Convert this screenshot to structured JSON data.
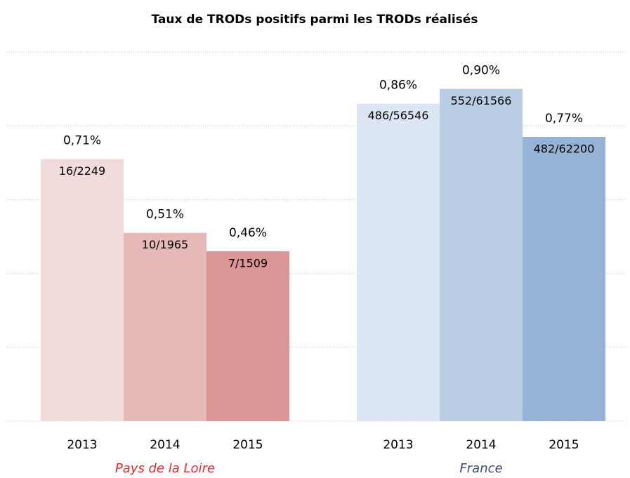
{
  "chart_data": {
    "type": "grouped-bar",
    "title": "Taux de TRODs positifs parmi les TRODs réalisés",
    "ylim": [
      0,
      1.0
    ],
    "yticks": [
      0,
      0.2,
      0.4,
      0.6,
      0.8,
      1.0
    ],
    "grid": true,
    "series": [
      {
        "name": "Pays de la Loire",
        "color": "#e8262b",
        "categories": [
          "2013",
          "2014",
          "2015"
        ],
        "values": [
          0.71,
          0.51,
          0.46
        ],
        "value_labels": [
          "0,71%",
          "0,51%",
          "0,46%"
        ],
        "inner_labels": [
          "16/2249",
          "10/1965",
          "7/1509"
        ],
        "bar_colors": [
          "#f2dcdb",
          "#e6b9b8",
          "#d99694"
        ]
      },
      {
        "name": "France",
        "color": "#3b4a6b",
        "categories": [
          "2013",
          "2014",
          "2015"
        ],
        "values": [
          0.86,
          0.9,
          0.77
        ],
        "value_labels": [
          "0,86%",
          "0,90%",
          "0,77%"
        ],
        "inner_labels": [
          "486/56546",
          "552/61566",
          "482/62200"
        ],
        "bar_colors": [
          "#dce6f2",
          "#b9cde5",
          "#95b3d7"
        ]
      }
    ]
  }
}
